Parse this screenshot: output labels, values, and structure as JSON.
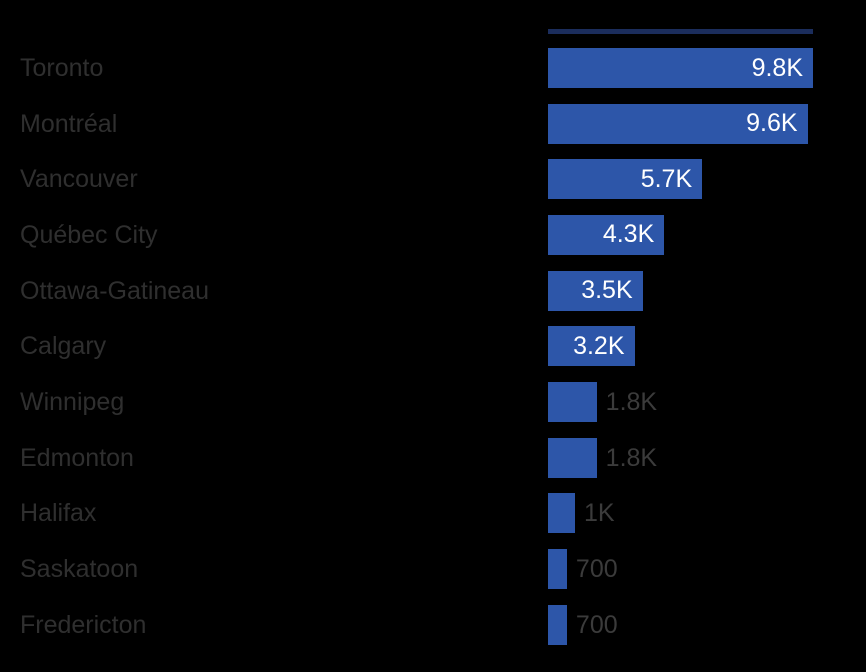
{
  "chart_data": {
    "type": "bar",
    "orientation": "horizontal",
    "title": "",
    "xlabel": "",
    "ylabel": "",
    "categories": [
      "Toronto",
      "Montréal",
      "Vancouver",
      "Québec City",
      "Ottawa-Gatineau",
      "Calgary",
      "Winnipeg",
      "Edmonton",
      "Halifax",
      "Saskatoon",
      "Fredericton"
    ],
    "values": [
      9800,
      9600,
      5700,
      4300,
      3500,
      3200,
      1800,
      1800,
      1000,
      700,
      700
    ],
    "value_labels": [
      "9.8K",
      "9.6K",
      "5.7K",
      "4.3K",
      "3.5K",
      "3.2K",
      "1.8K",
      "1.8K",
      "1K",
      "700",
      "700"
    ],
    "label_inside": [
      true,
      true,
      true,
      true,
      true,
      true,
      false,
      false,
      false,
      false,
      false
    ],
    "xlim": [
      0,
      9800
    ],
    "grid": false,
    "legend": false,
    "partial_bar_top": {
      "value": 9800,
      "note": "faint clipped bar sliver above first row"
    }
  },
  "colors": {
    "background": "#000000",
    "bar": "#2d56a9",
    "bar_faint": "#1b2d5c",
    "value_inside_text": "#ffffff",
    "value_outside_text": "#3b3b3b",
    "category_text": "#2f2f2f"
  }
}
